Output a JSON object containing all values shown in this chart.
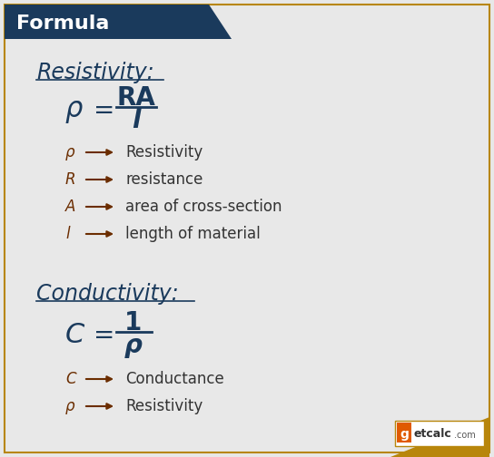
{
  "bg_color": "#e8e8e8",
  "header_bg": "#1a3a5c",
  "header_text": "Formula",
  "header_text_color": "#ffffff",
  "border_color": "#b8860b",
  "title_color": "#1a3a5c",
  "formula_color": "#1a3a5c",
  "symbol_color": "#6b2d00",
  "arrow_color": "#6b2d00",
  "desc_color": "#333333",
  "resistivity_title": "Resistivity:",
  "conductivity_title": "Conductivity:",
  "res_symbols": [
    "ρ",
    "R",
    "A",
    "l"
  ],
  "res_descriptions": [
    "Resistivity",
    "resistance",
    "area of cross-section",
    "length of material"
  ],
  "cond_symbols": [
    "C",
    "ρ"
  ],
  "cond_descriptions": [
    "Conductance",
    "Resistivity"
  ]
}
